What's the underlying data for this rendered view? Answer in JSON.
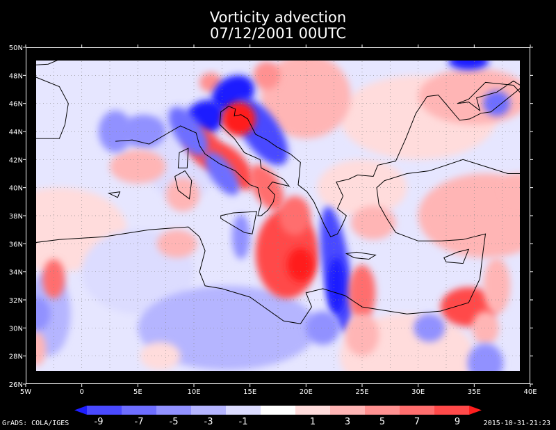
{
  "title": "Vorticity advection",
  "subtitle": "07/12/2001 00UTC",
  "x_ticks": [
    "5W",
    "0",
    "5E",
    "10E",
    "15E",
    "20E",
    "25E",
    "30E",
    "35E",
    "40E"
  ],
  "y_ticks": [
    "26N",
    "28N",
    "30N",
    "32N",
    "34N",
    "36N",
    "38N",
    "40N",
    "42N",
    "44N",
    "46N",
    "48N",
    "50N"
  ],
  "colorbar": {
    "labels": [
      "-9",
      "-7",
      "-5",
      "-3",
      "-1",
      "1",
      "3",
      "5",
      "7",
      "9"
    ],
    "colors": [
      "#1e1eff",
      "#4a4aff",
      "#6e6eff",
      "#9191ff",
      "#b5b5ff",
      "#dcdcff",
      "#ffffff",
      "#ffdcdc",
      "#ffb5b5",
      "#ff9191",
      "#ff6e6e",
      "#ff4a4a",
      "#ff1e1e"
    ]
  },
  "credit": "GrADS: COLA/IGES",
  "timestamp": "2015-10-31-21:23",
  "map": {
    "lon_range": [
      -5,
      40
    ],
    "lat_range": [
      26,
      50
    ],
    "grid_step": 2.5,
    "background_color": "#e6e6ff",
    "coastline_color": "#000000"
  }
}
